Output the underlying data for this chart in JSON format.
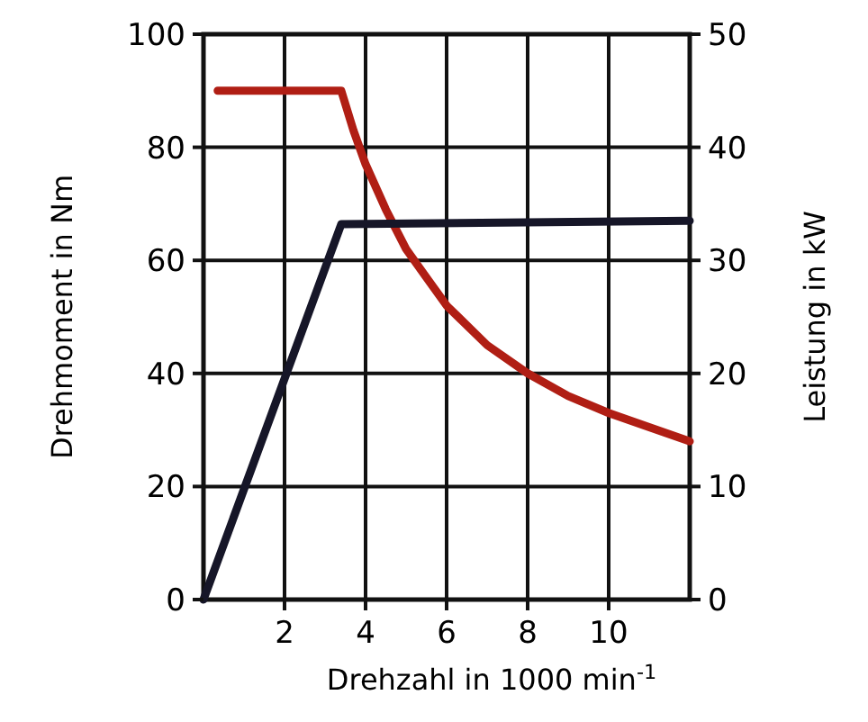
{
  "chart_data": {
    "type": "line",
    "xlabel": "Drehzahl in 1000 min$^{-1}$",
    "ylabel": "Drehmoment in Nm",
    "y2label": "Leistung in kW",
    "xlim": [
      0,
      12
    ],
    "xticks": [
      2,
      4,
      6,
      8,
      10
    ],
    "ylim": [
      0,
      100
    ],
    "yticks": [
      0,
      20,
      40,
      60,
      80,
      100
    ],
    "y2lim": [
      0,
      50
    ],
    "y2ticks": [
      0,
      10,
      20,
      30,
      40,
      50
    ],
    "grid": true,
    "marker": "none",
    "line_style": "solid",
    "series": [
      {
        "color": "#b01e14",
        "x": [
          0.35,
          3.4,
          3.7,
          4,
          4.5,
          5,
          5.5,
          6,
          7,
          8,
          9,
          10,
          11,
          12
        ],
        "values": [
          90,
          90,
          83,
          77,
          69,
          62,
          57,
          52,
          45,
          40,
          36,
          33,
          30.5,
          28
        ]
      },
      {
        "color": "#161628",
        "axis": "y2",
        "x": [
          0,
          3.4,
          12
        ],
        "values": [
          0,
          33.2,
          33.5
        ]
      }
    ]
  }
}
